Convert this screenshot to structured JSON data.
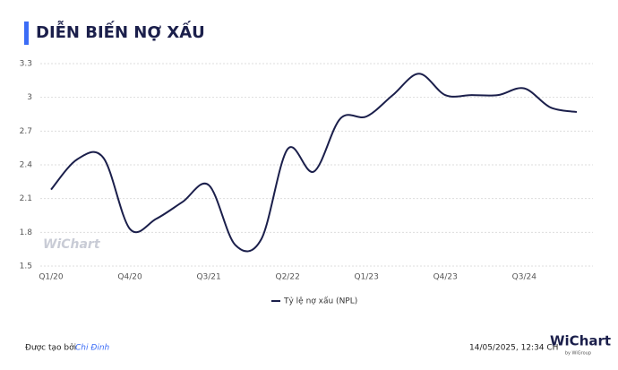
{
  "chart_data": {
    "type": "line",
    "title": "DIỄN BIẾN NỢ XẤU",
    "categories": [
      "Q1/20",
      null,
      null,
      "Q4/20",
      null,
      null,
      "Q3/21",
      null,
      null,
      "Q2/22",
      null,
      null,
      "Q1/23",
      null,
      null,
      "Q4/23",
      null,
      null,
      "Q3/24",
      null,
      null
    ],
    "series": [
      {
        "name": "Tỷ lệ nợ xấu (NPL)",
        "color": "#1b1f4b",
        "values": [
          2.18,
          2.45,
          2.46,
          1.83,
          1.92,
          2.07,
          2.22,
          1.69,
          1.74,
          2.54,
          2.34,
          2.81,
          2.83,
          3.02,
          3.21,
          3.02,
          3.02,
          3.02,
          3.08,
          2.91,
          2.87
        ]
      }
    ],
    "ylim": [
      1.5,
      3.3
    ],
    "yticks": [
      1.5,
      1.8,
      2.1,
      2.4,
      2.7,
      3,
      3.3
    ],
    "grid": true,
    "legend": "bottom",
    "watermark": "WiChart"
  },
  "footer": {
    "created_by": "Được tạo bởi",
    "author": "Chi Đinh",
    "timestamp": "14/05/2025, 12:34 CH",
    "logo": "WiChart",
    "logo_sub": "by WiGroup"
  }
}
